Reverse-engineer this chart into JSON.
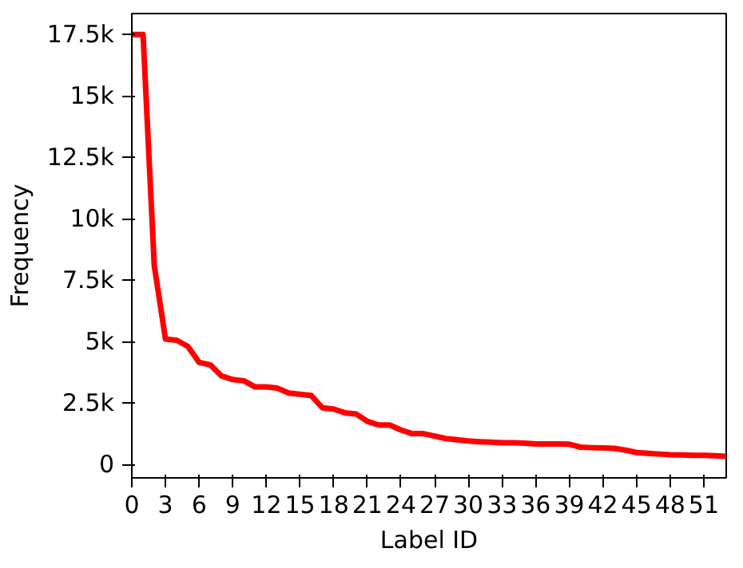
{
  "chart_data": {
    "type": "line",
    "xlabel": "Label ID",
    "ylabel": "Frequency",
    "x": [
      0,
      1,
      2,
      3,
      4,
      5,
      6,
      7,
      8,
      9,
      10,
      11,
      12,
      13,
      14,
      15,
      16,
      17,
      18,
      19,
      20,
      21,
      22,
      23,
      24,
      25,
      26,
      27,
      28,
      29,
      30,
      31,
      32,
      33,
      34,
      35,
      36,
      37,
      38,
      39,
      40,
      41,
      42,
      43,
      44,
      45,
      46,
      47,
      48,
      49,
      50,
      51,
      52,
      53
    ],
    "series": [
      {
        "color": "#ff0000",
        "values": [
          17500,
          17500,
          8100,
          5100,
          5050,
          4800,
          4150,
          4050,
          3600,
          3450,
          3400,
          3150,
          3150,
          3100,
          2900,
          2850,
          2800,
          2300,
          2250,
          2100,
          2050,
          1750,
          1600,
          1600,
          1400,
          1250,
          1250,
          1150,
          1050,
          1000,
          950,
          920,
          900,
          880,
          880,
          860,
          830,
          830,
          830,
          820,
          700,
          680,
          670,
          650,
          580,
          480,
          450,
          420,
          390,
          380,
          370,
          370,
          350,
          330
        ]
      }
    ],
    "xlim": [
      0,
      53
    ],
    "ylim": [
      -550,
      18350
    ],
    "xticks": [
      0,
      3,
      6,
      9,
      12,
      15,
      18,
      21,
      24,
      27,
      30,
      33,
      36,
      39,
      42,
      45,
      48,
      51
    ],
    "yticks": [
      0,
      {
        "value": 2500,
        "label": "2.5k"
      },
      {
        "value": 5000,
        "label": "5k"
      },
      {
        "value": 7500,
        "label": "7.5k"
      },
      {
        "value": 10000,
        "label": "10k"
      },
      {
        "value": 12500,
        "label": "12.5k"
      },
      {
        "value": 15000,
        "label": "15k"
      },
      {
        "value": 17500,
        "label": "17.5k"
      }
    ],
    "grid": false,
    "marker": "none",
    "line_style": "solid"
  }
}
